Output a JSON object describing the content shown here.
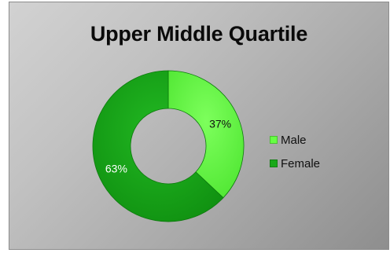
{
  "chart_data": {
    "type": "pie",
    "donut": true,
    "title": "Upper Middle Quartile",
    "categories": [
      "Male",
      "Female"
    ],
    "values": [
      37,
      63
    ],
    "data_labels": [
      "37%",
      "63%"
    ],
    "colors": [
      "#66ff44",
      "#18a818"
    ],
    "legend_placement": "right"
  }
}
